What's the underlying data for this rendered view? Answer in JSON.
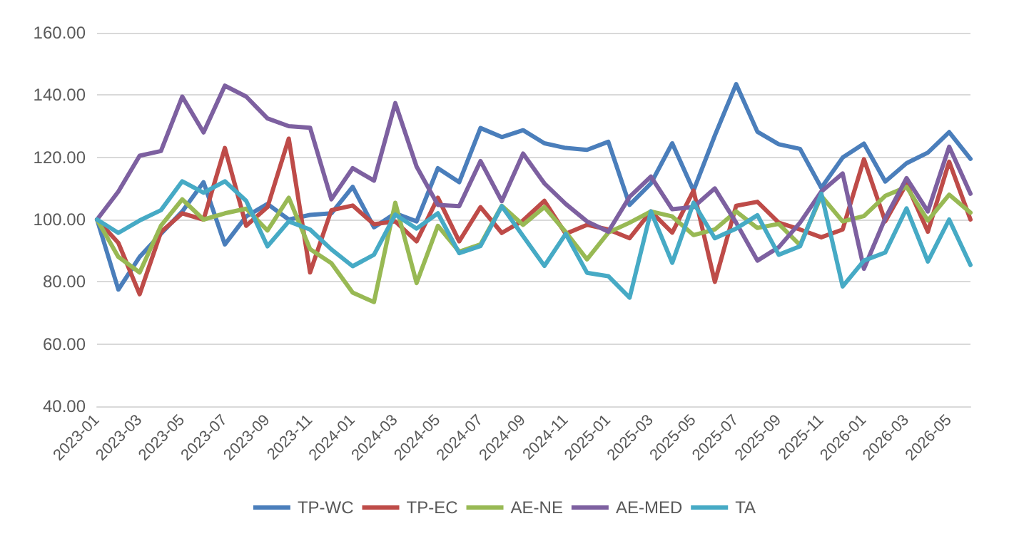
{
  "chart_data": {
    "type": "line",
    "categories": [
      "2023-01",
      null,
      "2023-03",
      null,
      "2023-05",
      null,
      "2023-07",
      null,
      "2023-09",
      null,
      "2023-11",
      null,
      "2024-01",
      null,
      "2024-03",
      null,
      "2024-05",
      null,
      "2024-07",
      null,
      "2024-09",
      null,
      "2024-11",
      null,
      "2025-01",
      null,
      "2025-03",
      null,
      "2025-05",
      null,
      "2025-07",
      null,
      "2025-09",
      null,
      "2025-11",
      null,
      "2026-01",
      null,
      "2026-03",
      null,
      "2026-05",
      null
    ],
    "series": [
      {
        "name": "TP-WC",
        "color": "#4a7ebb",
        "values": [
          100,
          77.5,
          88,
          95.4,
          102.6,
          112,
          92,
          101,
          105,
          100,
          101.5,
          102,
          110.5,
          97.5,
          102,
          99.4,
          116.5,
          112,
          129.4,
          126.5,
          128.7,
          124.5,
          123,
          122.4,
          125,
          104.7,
          111.6,
          124.5,
          109.3,
          127,
          143.5,
          128.2,
          124.2,
          122.7,
          110.2,
          119.9,
          124.4,
          112.2,
          118.1,
          121.5,
          128.1,
          119.5
        ]
      },
      {
        "name": "TP-EC",
        "color": "#be4b48",
        "values": [
          100,
          92.5,
          76,
          96,
          102,
          100,
          123,
          98,
          104,
          126,
          83,
          103,
          104.5,
          98.5,
          99.4,
          93,
          107,
          93,
          104,
          95.7,
          99.7,
          106,
          95.4,
          98.3,
          96.8,
          94,
          102.6,
          95.8,
          109.3,
          80,
          104.4,
          105.7,
          99,
          96.8,
          94.3,
          96.8,
          119.4,
          99.4,
          111.5,
          96.1,
          118.6,
          100
        ]
      },
      {
        "name": "AE-NE",
        "color": "#98b954",
        "values": [
          100,
          88,
          83,
          98,
          106.5,
          100,
          102,
          103.5,
          96.5,
          107,
          90.5,
          86,
          76.5,
          73.5,
          105.4,
          79.6,
          98,
          89.7,
          92,
          104.4,
          98.3,
          104,
          96,
          87.2,
          95.8,
          99,
          102.6,
          101,
          95,
          96.8,
          102.6,
          97.3,
          98.6,
          91.8,
          107.6,
          99.4,
          101.1,
          107.6,
          110.5,
          99.7,
          108,
          102.2
        ]
      },
      {
        "name": "AE-MED",
        "color": "#7d60a0",
        "values": [
          100,
          109,
          120.5,
          122,
          139.5,
          128,
          143,
          139.5,
          132.5,
          130,
          129.5,
          106.5,
          116.5,
          112.5,
          137.4,
          117,
          104.7,
          104.3,
          118.8,
          105.9,
          121.2,
          111.6,
          105,
          99.4,
          96.1,
          107.3,
          113.8,
          103.3,
          104,
          110,
          99,
          86.8,
          91.1,
          99,
          109,
          114.8,
          84.2,
          100.4,
          113.3,
          102.6,
          123.4,
          108.3
        ]
      },
      {
        "name": "TA",
        "color": "#46aac5",
        "values": [
          100,
          95.7,
          99.7,
          103,
          112.3,
          108.6,
          112.3,
          106,
          91.4,
          99.4,
          96.8,
          90.4,
          85,
          88.7,
          101.6,
          97.1,
          102,
          89.2,
          91.5,
          104.3,
          94.7,
          85.1,
          95.4,
          82.9,
          81.8,
          74.9,
          102.6,
          86.1,
          105.4,
          94,
          97.1,
          101.4,
          88.7,
          91.4,
          108.3,
          78.5,
          86.8,
          89.4,
          103.6,
          86.5,
          100,
          85.4
        ]
      }
    ],
    "ylim": [
      40,
      160
    ],
    "yticks": [
      {
        "value": 40,
        "label": "40.00"
      },
      {
        "value": 60,
        "label": "60.00"
      },
      {
        "value": 80,
        "label": "80.00"
      },
      {
        "value": 100,
        "label": "100.00"
      },
      {
        "value": 120,
        "label": "120.00"
      },
      {
        "value": 140,
        "label": "140.00"
      },
      {
        "value": 160,
        "label": "160.00"
      }
    ],
    "grid": "y",
    "legend": "bottom",
    "marker": "none",
    "line_style": "solid"
  }
}
